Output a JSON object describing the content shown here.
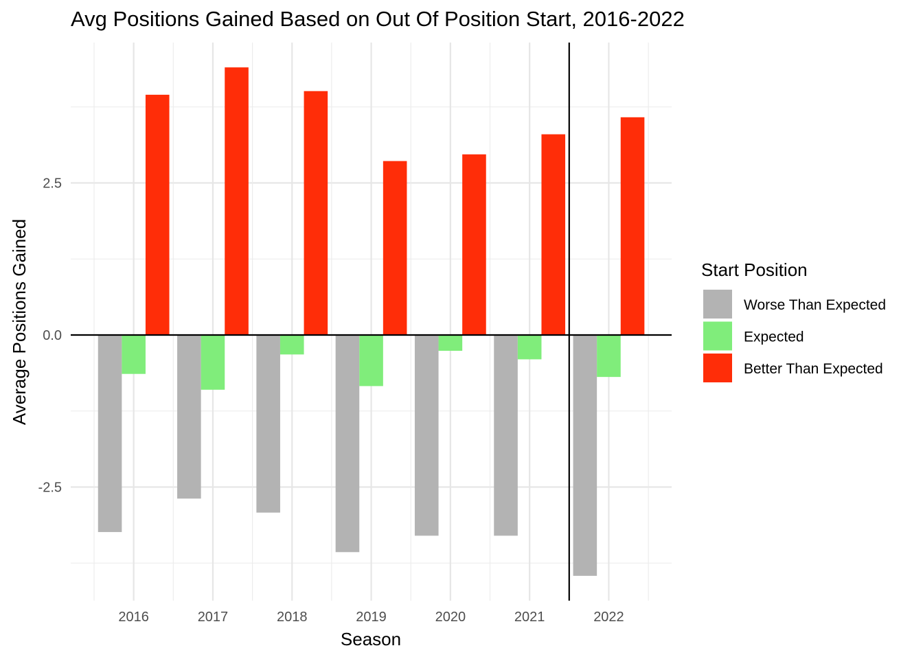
{
  "chart_data": {
    "type": "bar",
    "title": "Avg Positions Gained Based on Out Of Position Start, 2016-2022",
    "xlabel": "Season",
    "ylabel": "Average Positions Gained",
    "categories": [
      "2016",
      "2017",
      "2018",
      "2019",
      "2020",
      "2021",
      "2022"
    ],
    "series": [
      {
        "name": "Worse Than Expected",
        "color": "#b3b3b3",
        "values": [
          -3.24,
          -2.69,
          -2.92,
          -3.57,
          -3.3,
          -3.3,
          -3.96
        ]
      },
      {
        "name": "Expected",
        "color": "#80ed7b",
        "values": [
          -0.64,
          -0.9,
          -0.32,
          -0.84,
          -0.26,
          -0.4,
          -0.69
        ]
      },
      {
        "name": "Better Than Expected",
        "color": "#ff2d08",
        "values": [
          3.95,
          4.4,
          4.01,
          2.86,
          2.97,
          3.3,
          3.58
        ]
      }
    ],
    "yticks": [
      -2.5,
      0,
      2.5
    ],
    "ytick_labels": [
      "-2.5",
      "0.0",
      "2.5"
    ],
    "ylim": [
      -4.2,
      4.9
    ],
    "grid": true,
    "reference_lines": {
      "horizontal_at": 0,
      "vertical_between": [
        "2021",
        "2022"
      ]
    },
    "legend": {
      "title": "Start Position",
      "position": "right"
    }
  }
}
